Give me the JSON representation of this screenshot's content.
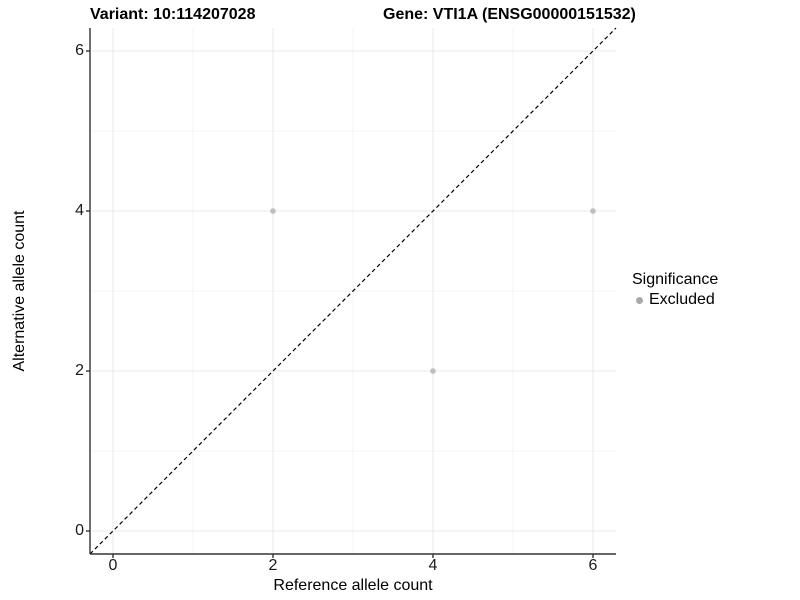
{
  "titles": {
    "left": "Variant: 10:114207028",
    "right": "Gene: VTI1A (ENSG00000151532)"
  },
  "axes": {
    "x_label": "Reference allele count",
    "y_label": "Alternative allele count"
  },
  "legend": {
    "title": "Significance",
    "items": [
      {
        "label": "Excluded",
        "color": "#a8a8a8",
        "marker": "circle-icon"
      }
    ]
  },
  "chart_data": {
    "type": "scatter",
    "title": "Variant: 10:114207028   Gene: VTI1A (ENSG00000151532)",
    "xlabel": "Reference allele count",
    "ylabel": "Alternative allele count",
    "xlim": [
      -0.2875,
      6.2875
    ],
    "ylim": [
      -0.2875,
      6.2875
    ],
    "x_ticks": [
      0,
      2,
      4,
      6
    ],
    "y_ticks": [
      0,
      2,
      4,
      6
    ],
    "x_minor_ticks": [
      1,
      3,
      5
    ],
    "y_minor_ticks": [
      1,
      3,
      5
    ],
    "grid": true,
    "legend_position": "right",
    "series": [
      {
        "name": "Excluded",
        "color": "#bebebe",
        "points": [
          {
            "x": 2,
            "y": 4
          },
          {
            "x": 6,
            "y": 4
          },
          {
            "x": 4,
            "y": 2
          }
        ]
      }
    ],
    "reference_line": {
      "type": "identity",
      "style": "dashed",
      "color": "#000000"
    },
    "style_colors": {
      "major_grid": "#e9e9e9",
      "minor_grid": "#f4f4f4",
      "axis_line": "#333333",
      "panel_background": "#ffffff"
    }
  }
}
